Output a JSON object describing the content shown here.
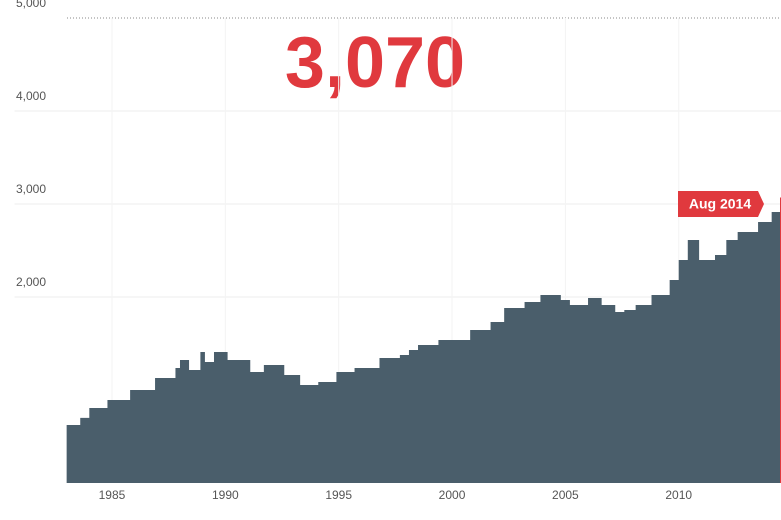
{
  "chart_data": {
    "type": "area",
    "headline": "3,070",
    "annotation": "Aug 2014",
    "x": [
      1983.0,
      1983.6,
      1984.0,
      1984.8,
      1985.8,
      1986.9,
      1987.8,
      1988.0,
      1988.4,
      1988.9,
      1989.1,
      1989.5,
      1990.1,
      1990.7,
      1991.1,
      1991.7,
      1992.6,
      1993.3,
      1994.1,
      1994.9,
      1995.7,
      1996.8,
      1997.7,
      1998.1,
      1998.5,
      1999.4,
      2000.8,
      2001.7,
      2002.3,
      2003.2,
      2003.9,
      2004.8,
      2005.2,
      2006.0,
      2006.6,
      2007.2,
      2007.6,
      2008.1,
      2008.8,
      2009.6,
      2010.0,
      2010.4,
      2010.9,
      2011.6,
      2012.1,
      2012.6,
      2013.5,
      2014.1,
      2014.58
    ],
    "values": [
      624,
      700,
      806,
      892,
      1000,
      1129,
      1237,
      1323,
      1215,
      1409,
      1301,
      1409,
      1323,
      1323,
      1194,
      1269,
      1161,
      1054,
      1086,
      1194,
      1237,
      1344,
      1376,
      1430,
      1484,
      1538,
      1645,
      1731,
      1882,
      1946,
      2022,
      1968,
      1914,
      1989,
      1914,
      1839,
      1860,
      1914,
      2022,
      2183,
      2398,
      2613,
      2398,
      2452,
      2613,
      2699,
      2806,
      2914,
      3070
    ],
    "color": "#4a5e6b",
    "highlight_color": "#e0393e",
    "xlim": [
      1980.7,
      2014.6
    ],
    "xticks": [
      1985,
      1990,
      1995,
      2000,
      2005,
      2010
    ],
    "ylim": [
      0,
      5000
    ],
    "yticks": [
      {
        "value": 2000,
        "label": "2,000"
      },
      {
        "value": 3000,
        "label": "3,000"
      },
      {
        "value": 4000,
        "label": "4,000"
      },
      {
        "value": 5000,
        "label": "5,000"
      }
    ],
    "grid": true
  }
}
